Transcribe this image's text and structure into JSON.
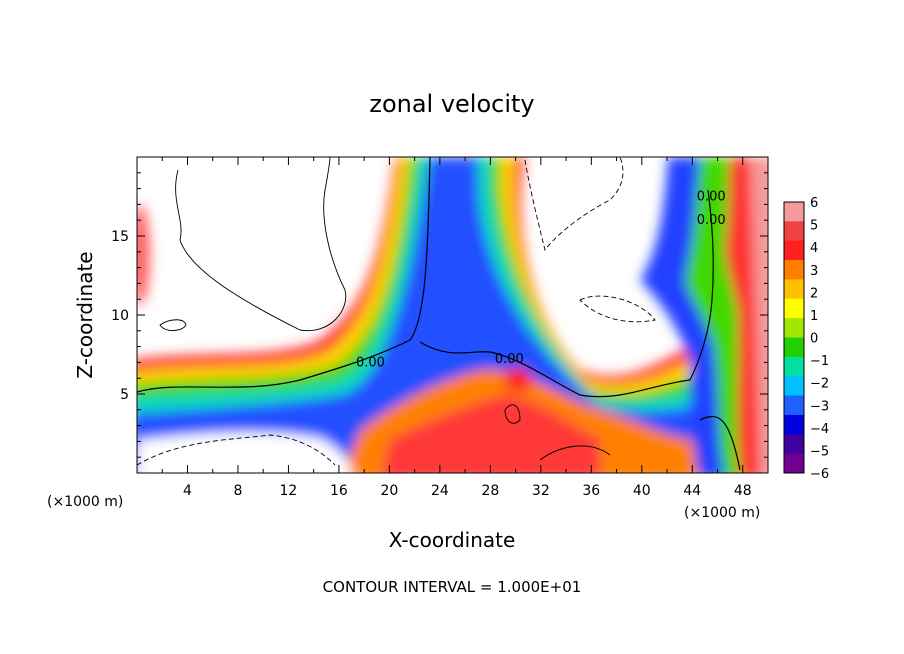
{
  "chart_data": {
    "type": "heatmap",
    "title": "zonal velocity",
    "xlabel": "X-coordinate",
    "ylabel": "Z-coordinate",
    "x_unit": "(×1000 m)",
    "z_unit": "(×1000 m)",
    "xlim": [
      0,
      50
    ],
    "ylim": [
      0,
      20
    ],
    "x_ticks": [
      "4",
      "8",
      "12",
      "16",
      "20",
      "24",
      "28",
      "32",
      "36",
      "40",
      "44",
      "48"
    ],
    "y_ticks": [
      "5",
      "10",
      "15"
    ],
    "colorbar": {
      "levels": [
        "6",
        "5",
        "4",
        "3",
        "2",
        "1",
        "0",
        "−1",
        "−2",
        "−3",
        "−4",
        "−5",
        "−6"
      ],
      "colors": [
        "#f59a9a",
        "#f04040",
        "#ff2020",
        "#ff8000",
        "#ffc000",
        "#ffff00",
        "#a0e800",
        "#20d000",
        "#00e0a0",
        "#00c0ff",
        "#2060ff",
        "#0000e0",
        "#4000a0",
        "#700090"
      ]
    },
    "contour_labels": [
      {
        "text": "0.00",
        "x": 18.5,
        "z": 7.0
      },
      {
        "text": "0.00",
        "x": 29.5,
        "z": 7.2
      },
      {
        "text": "0.00",
        "x": 45.5,
        "z": 17.5
      },
      {
        "text": "0.00",
        "x": 45.5,
        "z": 16.0
      }
    ],
    "footer": "CONTOUR INTERVAL = 1.000E+01"
  }
}
